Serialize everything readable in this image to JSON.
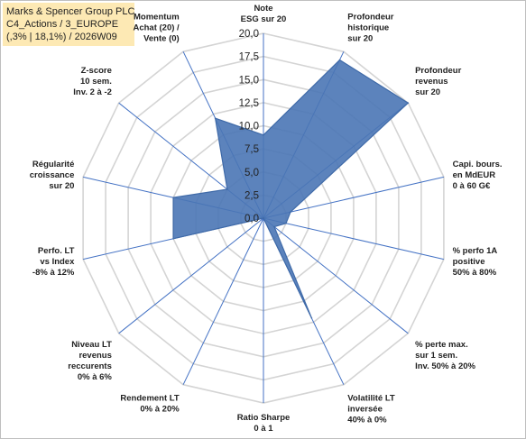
{
  "header": {
    "line1": "Marks & Spencer Group PLC",
    "line2": "C4_Actions / 3_EUROPE",
    "line3": "(,3% | 18,1%) / 2026W09"
  },
  "chart_data": {
    "type": "radar",
    "axes": [
      {
        "label": [
          "Note",
          "ESG sur 20"
        ]
      },
      {
        "label": [
          "Profondeur",
          "historique",
          "sur 20"
        ]
      },
      {
        "label": [
          "Profondeur",
          "revenus",
          "sur 20"
        ]
      },
      {
        "label": [
          "Capi. bours.",
          "en MdEUR",
          "0 à 60 G€"
        ]
      },
      {
        "label": [
          "% perfo 1A",
          "positive",
          "50% à 80%"
        ]
      },
      {
        "label": [
          "% perte max.",
          "sur 1 sem.",
          "Inv. 50% à 20%"
        ]
      },
      {
        "label": [
          "Volatilité LT",
          "inversée",
          "40% à 0%"
        ]
      },
      {
        "label": [
          "Ratio Sharpe",
          "0 à 1"
        ]
      },
      {
        "label": [
          "Rendement LT",
          "0% à 20%"
        ]
      },
      {
        "label": [
          "Niveau LT",
          "revenus",
          "reccurents",
          "0% à 6%"
        ]
      },
      {
        "label": [
          "Perfo. LT",
          "vs Index",
          "-8% à 12%"
        ]
      },
      {
        "label": [
          "Régularité",
          "croissance",
          "sur 20"
        ]
      },
      {
        "label": [
          "Z-score",
          "10 sem.",
          "Inv. 2 à -2"
        ]
      },
      {
        "label": [
          "Momentum",
          "Achat (20) /",
          "Vente (0)"
        ]
      }
    ],
    "series": [
      {
        "values": [
          9,
          19,
          20,
          3,
          2.5,
          1.5,
          12,
          0,
          0,
          0,
          10,
          10,
          5,
          12
        ]
      }
    ],
    "rlim": [
      0,
      20
    ],
    "ticks": [
      "0,0",
      "2,5",
      "5,0",
      "7,5",
      "10,0",
      "12,5",
      "15,0",
      "17,5",
      "20,0"
    ],
    "tick_values": [
      0,
      2.5,
      5,
      7.5,
      10,
      12.5,
      15,
      17.5,
      20
    ],
    "colors": {
      "fill": "#4a76b5",
      "stroke": "#3f6aa8",
      "grid": "#d4d4d4",
      "spoke": "#4472c4"
    }
  }
}
